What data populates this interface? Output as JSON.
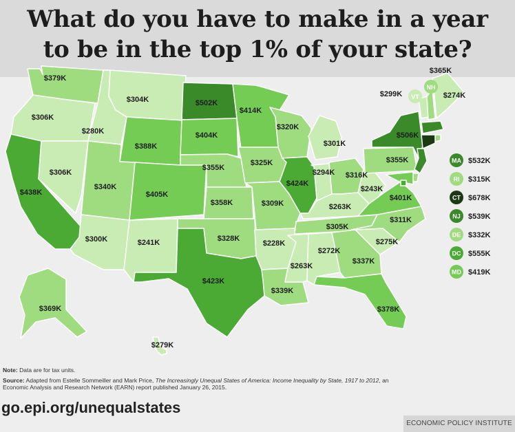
{
  "title": {
    "line1": "What do you have to make in a year",
    "line2": "to be in the top 1% of your state?"
  },
  "colors": {
    "lightest": "#c9ecb4",
    "light": "#9fdc80",
    "medium": "#74cc55",
    "dark": "#4aaa34",
    "darker": "#3a8a2a",
    "darkest": "#1b3a14"
  },
  "states": [
    {
      "id": "WA",
      "value": "$379K"
    },
    {
      "id": "OR",
      "value": "$306K"
    },
    {
      "id": "CA",
      "value": "$438K"
    },
    {
      "id": "NV",
      "value": "$306K"
    },
    {
      "id": "ID",
      "value": "$280K"
    },
    {
      "id": "MT",
      "value": "$304K"
    },
    {
      "id": "WY",
      "value": "$388K"
    },
    {
      "id": "UT",
      "value": "$340K"
    },
    {
      "id": "AZ",
      "value": "$300K"
    },
    {
      "id": "CO",
      "value": "$405K"
    },
    {
      "id": "NM",
      "value": "$241K"
    },
    {
      "id": "ND",
      "value": "$502K"
    },
    {
      "id": "SD",
      "value": "$404K"
    },
    {
      "id": "NE",
      "value": "$355K"
    },
    {
      "id": "KS",
      "value": "$358K"
    },
    {
      "id": "OK",
      "value": "$328K"
    },
    {
      "id": "TX",
      "value": "$423K"
    },
    {
      "id": "MN",
      "value": "$414K"
    },
    {
      "id": "IA",
      "value": "$325K"
    },
    {
      "id": "MO",
      "value": "$309K"
    },
    {
      "id": "AR",
      "value": "$228K"
    },
    {
      "id": "LA",
      "value": "$339K"
    },
    {
      "id": "WI",
      "value": "$320K"
    },
    {
      "id": "IL",
      "value": "$424K"
    },
    {
      "id": "MI",
      "value": "$301K"
    },
    {
      "id": "IN",
      "value": "$294K"
    },
    {
      "id": "OH",
      "value": "$316K"
    },
    {
      "id": "KY",
      "value": "$263K"
    },
    {
      "id": "TN",
      "value": "$305K"
    },
    {
      "id": "MS",
      "value": "$272K"
    },
    {
      "id": "AL",
      "value": "$263K"
    },
    {
      "id": "GA",
      "value": "$337K"
    },
    {
      "id": "FL",
      "value": "$378K"
    },
    {
      "id": "SC",
      "value": "$275K"
    },
    {
      "id": "NC",
      "value": "$311K"
    },
    {
      "id": "VA",
      "value": "$401K"
    },
    {
      "id": "WV",
      "value": "$243K"
    },
    {
      "id": "PA",
      "value": "$355K"
    },
    {
      "id": "NY",
      "value": "$506K"
    },
    {
      "id": "ME",
      "value": "$274K"
    },
    {
      "id": "NH",
      "value": "$365K"
    },
    {
      "id": "VT",
      "value": "$299K"
    },
    {
      "id": "AK",
      "value": "$369K"
    },
    {
      "id": "HI",
      "value": "$279K"
    }
  ],
  "small_states": [
    {
      "id": "MA",
      "value": "$532K"
    },
    {
      "id": "RI",
      "value": "$315K"
    },
    {
      "id": "CT",
      "value": "$678K"
    },
    {
      "id": "NJ",
      "value": "$539K"
    },
    {
      "id": "DE",
      "value": "$332K"
    },
    {
      "id": "DC",
      "value": "$555K"
    },
    {
      "id": "MD",
      "value": "$419K"
    }
  ],
  "note": {
    "label": "Note:",
    "text": " Data are for tax units."
  },
  "source": {
    "label": "Source:",
    "text1": " Adapted from Estelle Sommeiller and Mark Price, ",
    "italic": "The Increasingly Unequal States of America: Income Inequality by State, 1917 to 2012",
    "text2": ", an Economic Analysis and Research Network (EARN) report published January 26, 2015."
  },
  "url": "go.epi.org/unequalstates",
  "footer": "ECONOMIC POLICY INSTITUTE"
}
